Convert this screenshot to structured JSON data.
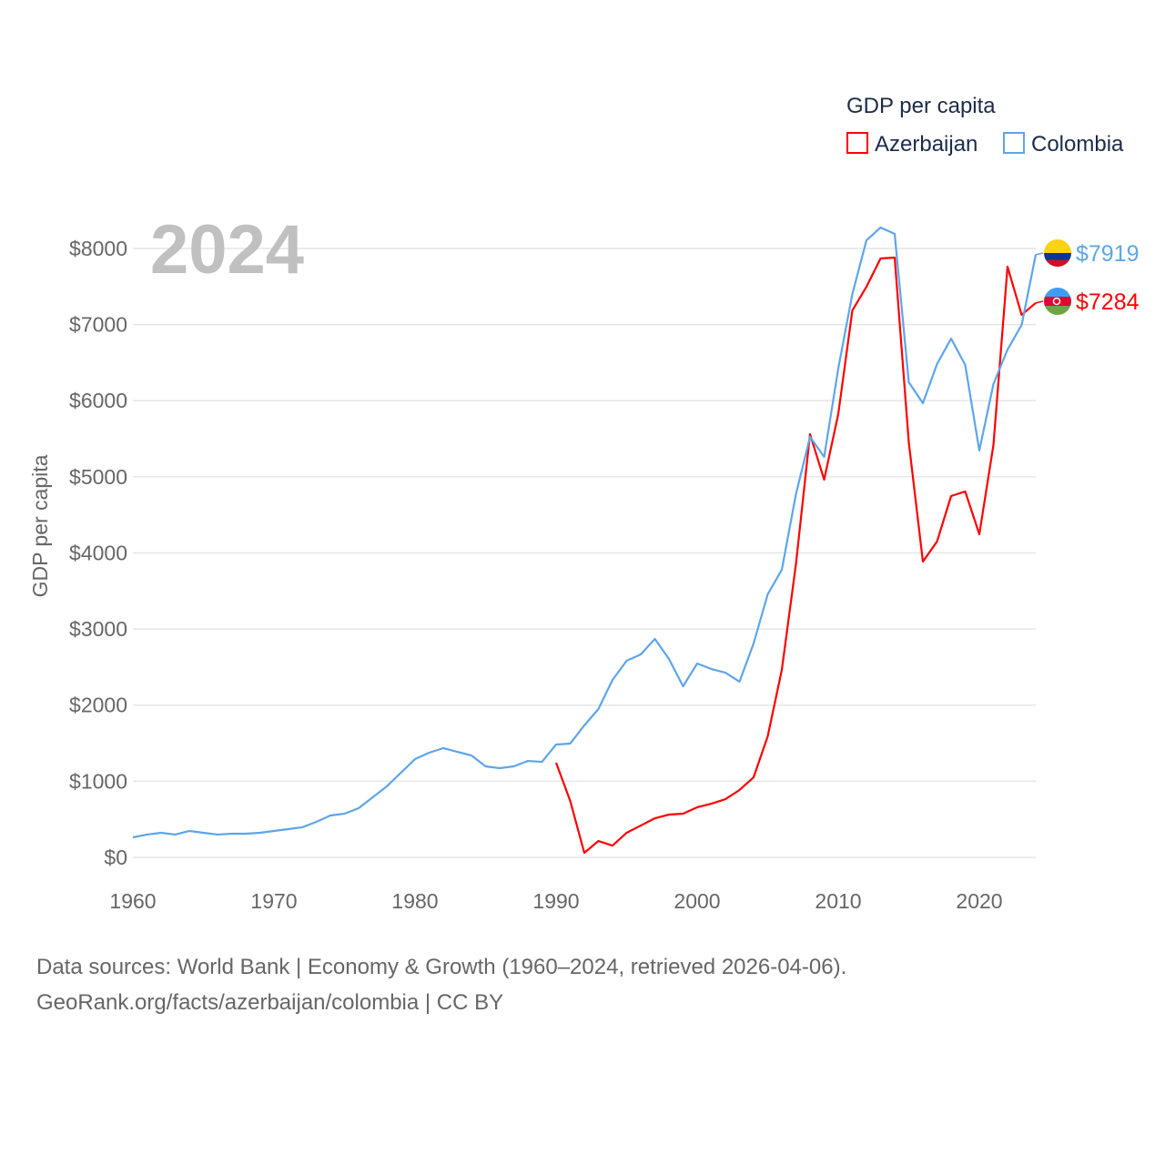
{
  "chart_data": {
    "type": "line",
    "title": "GDP per capita",
    "ylabel": "GDP per capita",
    "xlabel": "",
    "year_label": "2024",
    "xlim": [
      1960,
      2024
    ],
    "ylim": [
      0,
      8300
    ],
    "xticks": [
      1960,
      1970,
      1980,
      1990,
      2000,
      2010,
      2020
    ],
    "xtick_labels": [
      "1960",
      "1970",
      "1980",
      "1990",
      "2000",
      "2010",
      "2020"
    ],
    "yticks": [
      0,
      1000,
      2000,
      3000,
      4000,
      5000,
      6000,
      7000,
      8000
    ],
    "ytick_labels": [
      "$0",
      "$1000",
      "$2000",
      "$3000",
      "$4000",
      "$5000",
      "$6000",
      "$7000",
      "$8000"
    ],
    "grid": true,
    "legend": "top-right",
    "series": [
      {
        "name": "Azerbaijan",
        "color": "#ff0000",
        "end_label": "$7284",
        "start": 1990,
        "values": [
          1243,
          741,
          60,
          215,
          155,
          323,
          418,
          514,
          562,
          574,
          658,
          705,
          765,
          885,
          1052,
          1590,
          2463,
          3850,
          5560,
          4962,
          5823,
          7186,
          7497,
          7868,
          7880,
          5453,
          3886,
          4149,
          4747,
          4807,
          4245,
          5417,
          7760,
          7127,
          7284
        ]
      },
      {
        "name": "Colombia",
        "color": "#5da5ea",
        "end_label": "$7919",
        "start": 1960,
        "values": [
          263,
          300,
          323,
          300,
          347,
          323,
          300,
          311,
          311,
          323,
          347,
          371,
          395,
          466,
          550,
          574,
          646,
          789,
          933,
          1112,
          1291,
          1375,
          1435,
          1387,
          1339,
          1196,
          1172,
          1196,
          1267,
          1255,
          1483,
          1495,
          1734,
          1949,
          2332,
          2583,
          2666,
          2870,
          2607,
          2248,
          2547,
          2475,
          2427,
          2308,
          2810,
          3456,
          3779,
          4771,
          5524,
          5261,
          6421,
          7402,
          8107,
          8275,
          8191,
          6242,
          5967,
          6481,
          6816,
          6469,
          5345,
          6218,
          6672,
          6995,
          7919
        ]
      }
    ]
  },
  "sources": {
    "line1": "Data sources: World Bank | Economy & Growth (1960–2024, retrieved 2026-04-06).",
    "line2": "GeoRank.org/facts/azerbaijan/colombia | CC BY"
  }
}
